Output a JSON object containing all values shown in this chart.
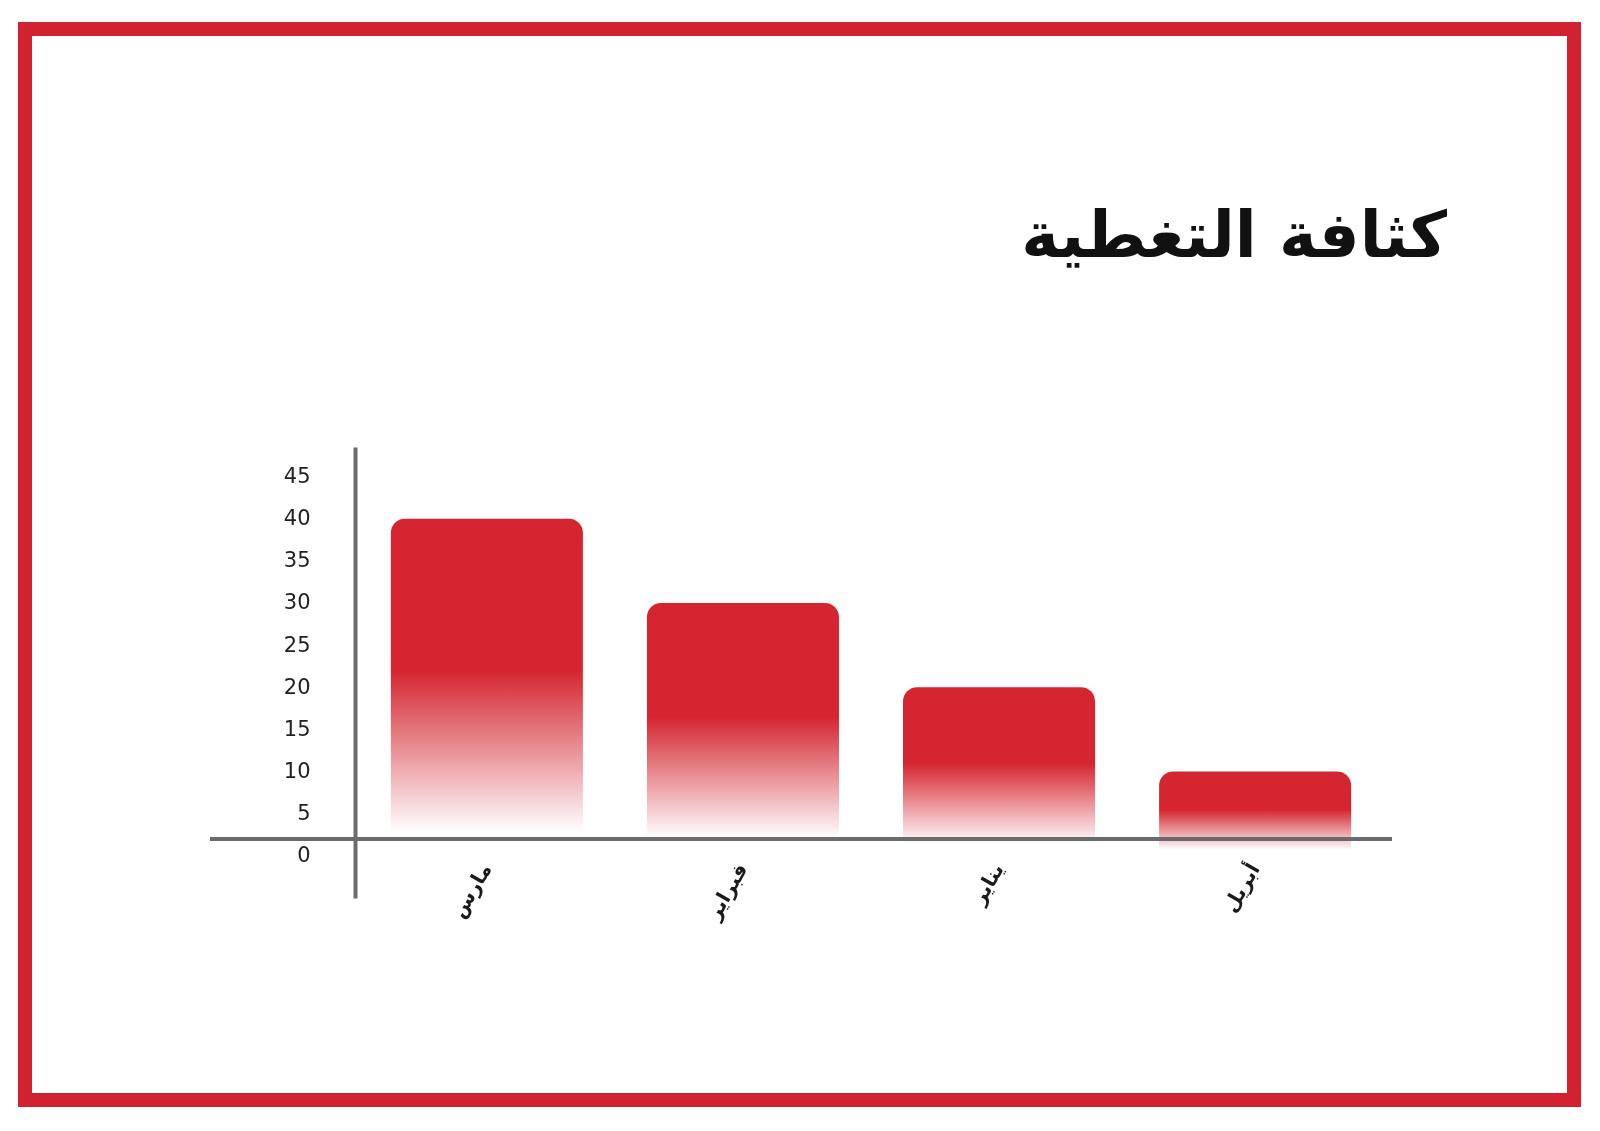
{
  "chart_data": {
    "type": "bar",
    "title": "كثافة التغطية",
    "categories": [
      "مارس",
      "فبراير",
      "يناير",
      "أبريل"
    ],
    "values": [
      40,
      30,
      20,
      10
    ],
    "color": "#d42530",
    "ylim": [
      -5,
      48.5
    ],
    "yticks": [
      0,
      5,
      10,
      15,
      20,
      25,
      30,
      35,
      40,
      45
    ]
  }
}
